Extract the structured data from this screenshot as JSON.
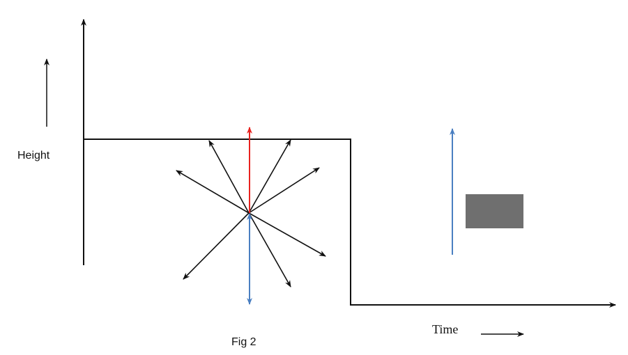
{
  "labels": {
    "height": "Height",
    "time": "Time",
    "caption": "Fig 2"
  },
  "colors": {
    "line": "#111111",
    "red_arrow": "#e8231f",
    "blue_arrow": "#4a7fc1",
    "block": "#6f6f6f"
  }
}
